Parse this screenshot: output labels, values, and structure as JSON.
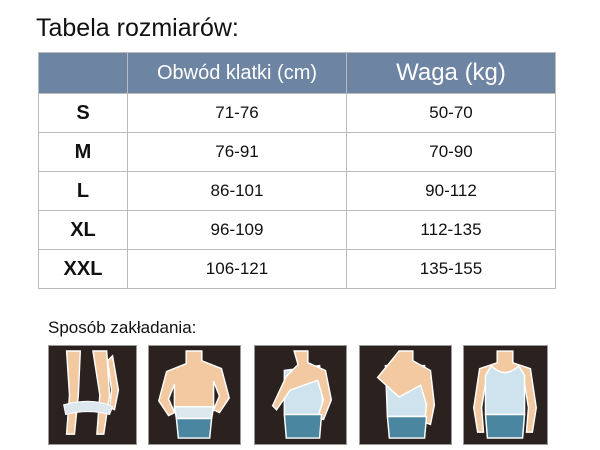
{
  "title": "Tabela rozmiarów:",
  "table": {
    "headers": [
      "",
      "Obwód klatki (cm)",
      "Waga (kg)"
    ],
    "rows": [
      {
        "size": "S",
        "chest": "71-76",
        "weight": "50-70"
      },
      {
        "size": "M",
        "chest": "76-91",
        "weight": "70-90"
      },
      {
        "size": "L",
        "chest": "86-101",
        "weight": "90-112"
      },
      {
        "size": "XL",
        "chest": "96-109",
        "weight": "112-135"
      },
      {
        "size": "XXL",
        "chest": "106-121",
        "weight": "135-155"
      }
    ]
  },
  "instructions_title": "Sposób zakładania:",
  "colors": {
    "header_bg": "#6e84a3",
    "panel_bg": "#2b2220",
    "skin": "#f2c9a0",
    "shorts": "#4a86a0",
    "shirt": "#cfe3ee"
  }
}
